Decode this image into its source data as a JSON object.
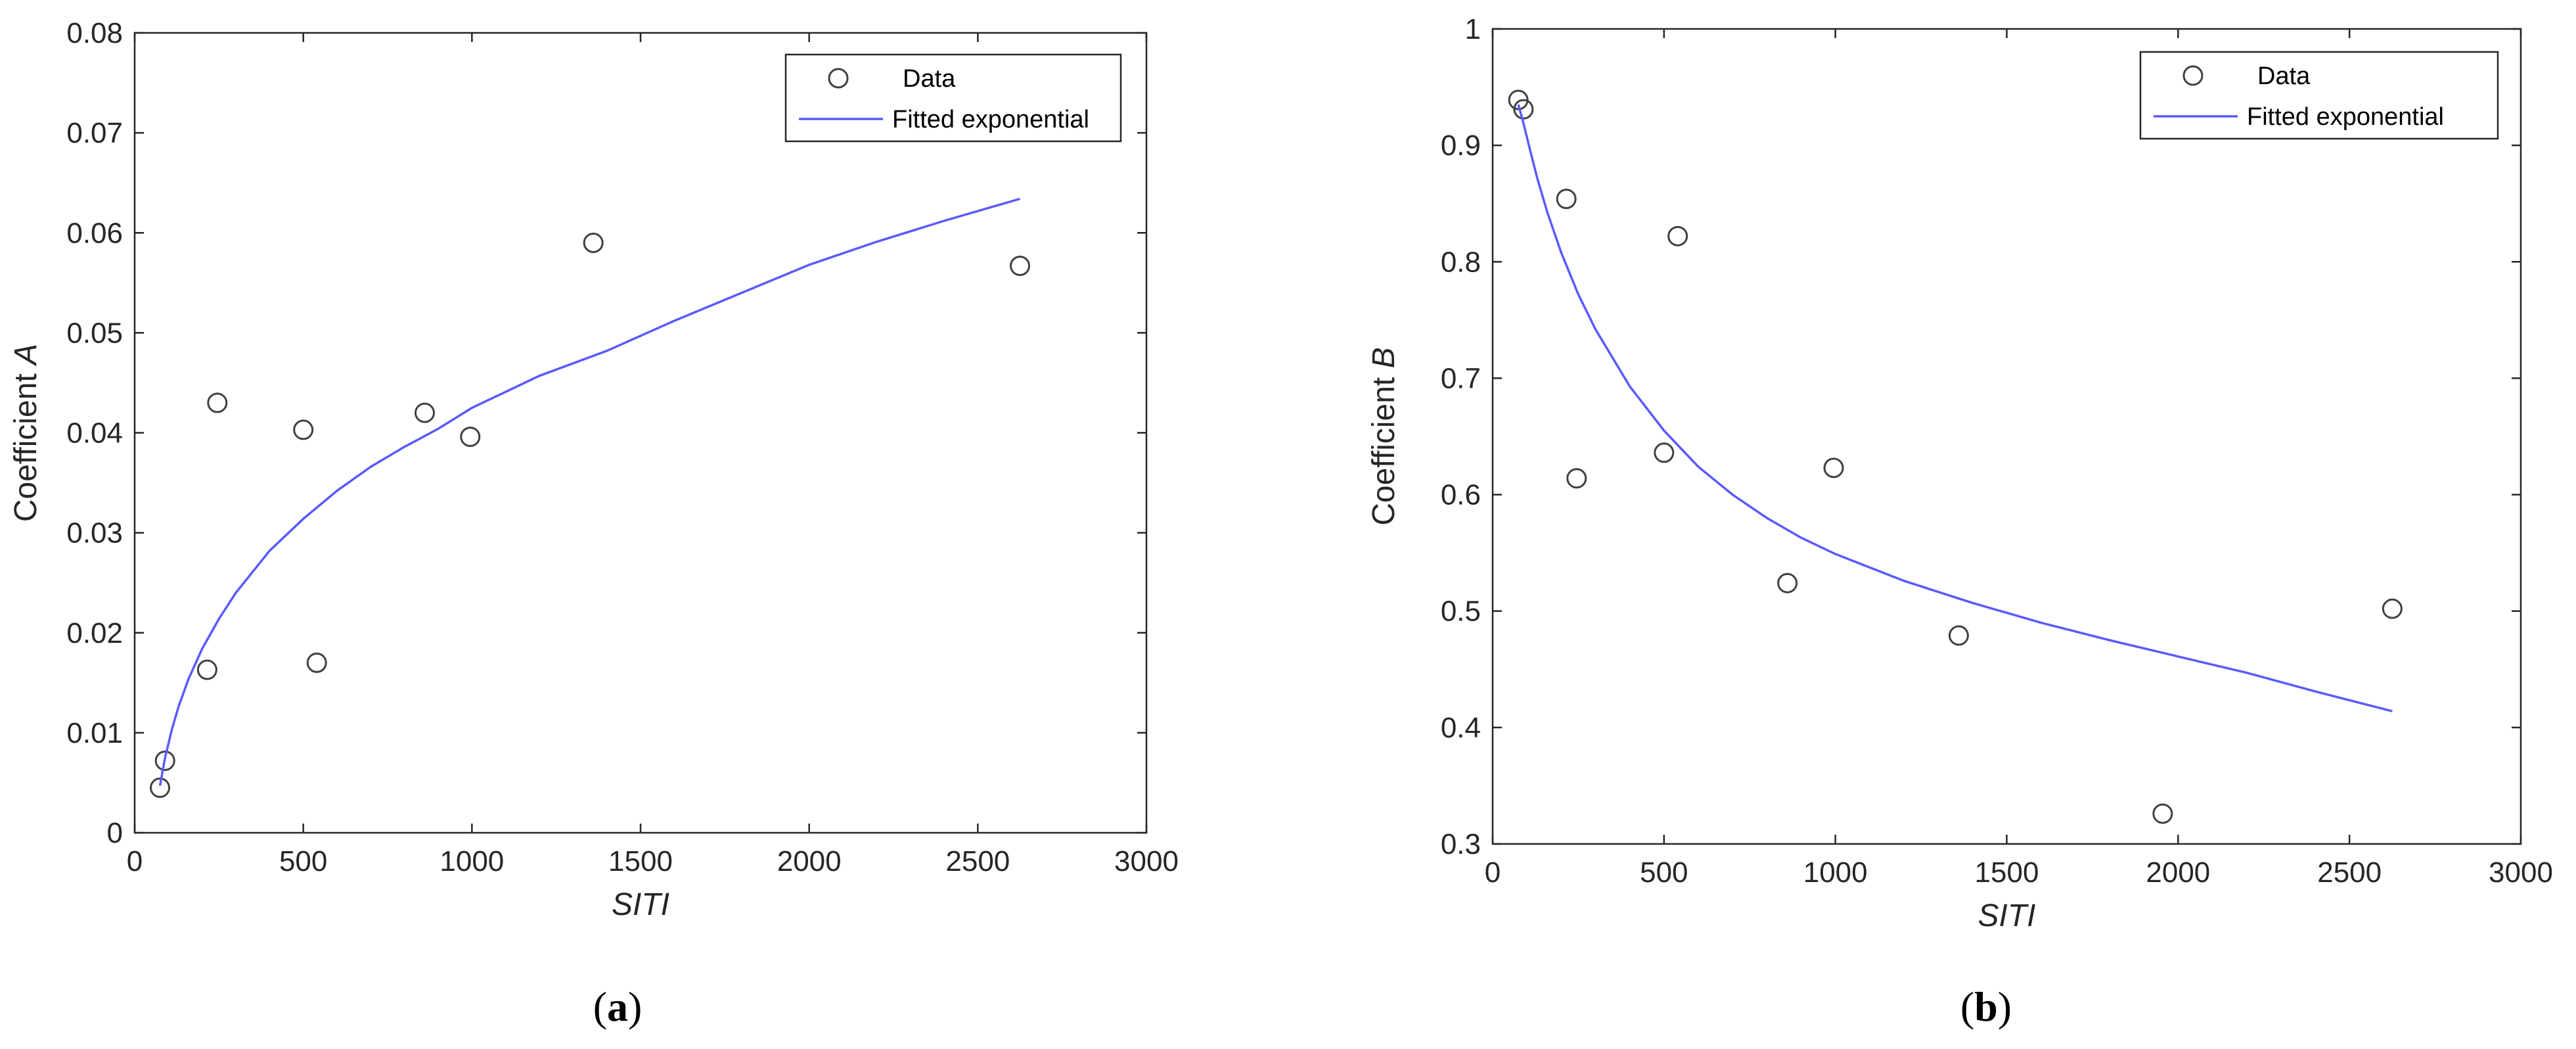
{
  "chart_data": [
    {
      "type": "scatter",
      "panel_label": "a",
      "caption": "(a)",
      "xlabel": "SITI",
      "ylabel_prefix": "Coefficient ",
      "ylabel_var": "A",
      "xlim": [
        0,
        3000
      ],
      "ylim": [
        0,
        0.08
      ],
      "xticks": [
        0,
        500,
        1000,
        1500,
        2000,
        2500,
        3000
      ],
      "xtick_labels": [
        "0",
        "500",
        "1000",
        "1500",
        "2000",
        "2500",
        "3000"
      ],
      "yticks": [
        0,
        0.01,
        0.02,
        0.03,
        0.04,
        0.05,
        0.06,
        0.07,
        0.08
      ],
      "ytick_labels": [
        "0",
        "0.01",
        "0.02",
        "0.03",
        "0.04",
        "0.05",
        "0.06",
        "0.07",
        "0.08"
      ],
      "grid": false,
      "legend_position": "top-right",
      "series": [
        {
          "name": "Data",
          "kind": "points",
          "marker": "circle-open",
          "color": "#404040",
          "points": [
            [
              75,
              0.0045
            ],
            [
              90,
              0.0072
            ],
            [
              215,
              0.0163
            ],
            [
              245,
              0.043
            ],
            [
              500,
              0.0403
            ],
            [
              540,
              0.017
            ],
            [
              860,
              0.042
            ],
            [
              995,
              0.0396
            ],
            [
              1360,
              0.059
            ],
            [
              2625,
              0.0567
            ]
          ]
        },
        {
          "name": "Fitted exponential",
          "kind": "line",
          "color": "#5a5aff",
          "points": [
            [
              75,
              0.0047
            ],
            [
              90,
              0.0075
            ],
            [
              110,
              0.0103
            ],
            [
              130,
              0.0126
            ],
            [
              160,
              0.0154
            ],
            [
              200,
              0.0184
            ],
            [
              250,
              0.0214
            ],
            [
              300,
              0.024
            ],
            [
              400,
              0.0282
            ],
            [
              500,
              0.0314
            ],
            [
              600,
              0.0342
            ],
            [
              700,
              0.0366
            ],
            [
              800,
              0.0386
            ],
            [
              900,
              0.0404
            ],
            [
              1000,
              0.0425
            ],
            [
              1200,
              0.0457
            ],
            [
              1400,
              0.0482
            ],
            [
              1600,
              0.0512
            ],
            [
              1800,
              0.054
            ],
            [
              2000,
              0.0568
            ],
            [
              2200,
              0.0591
            ],
            [
              2400,
              0.0612
            ],
            [
              2625,
              0.0634
            ]
          ]
        }
      ]
    },
    {
      "type": "scatter",
      "panel_label": "b",
      "caption": "(b)",
      "xlabel": "SITI",
      "ylabel_prefix": "Coefficient ",
      "ylabel_var": "B",
      "xlim": [
        0,
        3000
      ],
      "ylim": [
        0.3,
        1
      ],
      "xticks": [
        0,
        500,
        1000,
        1500,
        2000,
        2500,
        3000
      ],
      "xtick_labels": [
        "0",
        "500",
        "1000",
        "1500",
        "2000",
        "2500",
        "3000"
      ],
      "yticks": [
        0.3,
        0.4,
        0.5,
        0.6,
        0.7,
        0.8,
        0.9,
        1
      ],
      "ytick_labels": [
        "0.3",
        "0.4",
        "0.5",
        "0.6",
        "0.7",
        "0.8",
        "0.9",
        "1"
      ],
      "grid": false,
      "legend_position": "top-right",
      "series": [
        {
          "name": "Data",
          "kind": "points",
          "marker": "circle-open",
          "color": "#404040",
          "points": [
            [
              75,
              0.939
            ],
            [
              90,
              0.931
            ],
            [
              215,
              0.854
            ],
            [
              245,
              0.614
            ],
            [
              500,
              0.636
            ],
            [
              540,
              0.822
            ],
            [
              860,
              0.524
            ],
            [
              995,
              0.623
            ],
            [
              1360,
              0.479
            ],
            [
              1955,
              0.326
            ],
            [
              2625,
              0.502
            ]
          ]
        },
        {
          "name": "Fitted exponential",
          "kind": "line",
          "color": "#5a5aff",
          "points": [
            [
              75,
              0.935
            ],
            [
              90,
              0.919
            ],
            [
              110,
              0.895
            ],
            [
              130,
              0.872
            ],
            [
              160,
              0.842
            ],
            [
              200,
              0.808
            ],
            [
              250,
              0.772
            ],
            [
              300,
              0.742
            ],
            [
              400,
              0.693
            ],
            [
              500,
              0.655
            ],
            [
              600,
              0.624
            ],
            [
              700,
              0.6
            ],
            [
              800,
              0.58
            ],
            [
              900,
              0.563
            ],
            [
              1000,
              0.549
            ],
            [
              1200,
              0.526
            ],
            [
              1400,
              0.507
            ],
            [
              1600,
              0.49
            ],
            [
              1800,
              0.475
            ],
            [
              2000,
              0.461
            ],
            [
              2200,
              0.447
            ],
            [
              2400,
              0.431
            ],
            [
              2625,
              0.414
            ]
          ]
        }
      ]
    }
  ]
}
